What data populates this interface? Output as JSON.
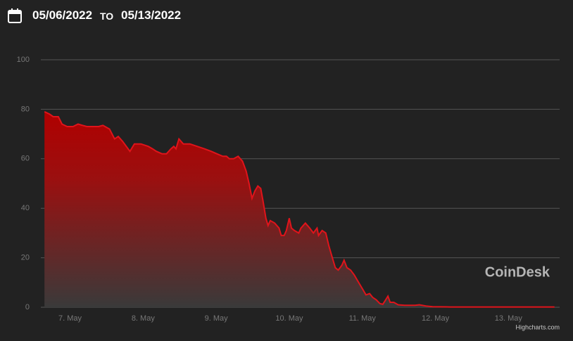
{
  "header": {
    "date_from": "05/06/2022",
    "to_label": "TO",
    "date_to": "05/13/2022"
  },
  "chart_data": {
    "type": "area",
    "watermark": "CoinDesk",
    "credits": "Highcharts.com",
    "x": [
      0.65,
      0.72,
      0.77,
      0.84,
      0.89,
      0.96,
      1.04,
      1.11,
      1.17,
      1.23,
      1.32,
      1.39,
      1.45,
      1.54,
      1.61,
      1.66,
      1.72,
      1.77,
      1.82,
      1.88,
      1.97,
      2.07,
      2.13,
      2.18,
      2.26,
      2.32,
      2.38,
      2.42,
      2.45,
      2.49,
      2.55,
      2.64,
      2.74,
      2.84,
      2.93,
      3.01,
      3.09,
      3.14,
      3.18,
      3.24,
      3.3,
      3.36,
      3.41,
      3.45,
      3.49,
      3.53,
      3.57,
      3.61,
      3.64,
      3.68,
      3.71,
      3.74,
      3.8,
      3.86,
      3.89,
      3.93,
      3.96,
      4.0,
      4.03,
      4.07,
      4.13,
      4.16,
      4.22,
      4.28,
      4.33,
      4.38,
      4.4,
      4.45,
      4.5,
      4.54,
      4.58,
      4.63,
      4.67,
      4.72,
      4.75,
      4.79,
      4.84,
      4.89,
      4.95,
      5.01,
      5.05,
      5.1,
      5.14,
      5.19,
      5.24,
      5.28,
      5.32,
      5.35,
      5.38,
      5.43,
      5.49,
      5.58,
      5.72,
      5.78,
      5.87,
      5.96,
      6.2,
      6.78,
      7.63
    ],
    "series": [
      {
        "color": "#e0141b",
        "values": [
          79,
          78,
          77,
          77,
          74,
          73,
          73,
          74,
          73.5,
          73,
          73,
          73,
          73.5,
          72,
          68,
          69,
          67,
          65,
          63,
          66,
          66,
          65,
          64,
          63,
          62,
          62,
          64,
          65,
          64,
          68,
          66,
          66,
          65,
          64,
          63,
          62,
          61,
          61,
          60,
          60,
          61,
          59,
          55,
          50,
          44,
          47,
          49,
          48,
          43,
          36,
          33,
          35,
          34,
          32,
          29,
          29,
          31,
          36,
          32,
          31,
          30,
          32,
          34,
          32,
          30,
          32,
          29,
          31,
          30,
          25,
          21,
          16,
          15,
          17,
          19,
          16,
          15,
          13,
          10,
          7,
          5,
          5.5,
          4,
          3,
          1.5,
          1.2,
          3,
          4.5,
          2,
          2,
          1,
          0.8,
          0.8,
          1,
          0.5,
          0.2,
          0.1,
          0.1,
          0.1
        ]
      }
    ],
    "xlim": [
      0.6,
      7.7
    ],
    "xticks": [
      {
        "value": 1,
        "label": "7. May"
      },
      {
        "value": 2,
        "label": "8. May"
      },
      {
        "value": 3,
        "label": "9. May"
      },
      {
        "value": 4,
        "label": "10. May"
      },
      {
        "value": 5,
        "label": "11. May"
      },
      {
        "value": 6,
        "label": "12. May"
      },
      {
        "value": 7,
        "label": "13. May"
      }
    ],
    "ylim": [
      0,
      100
    ],
    "yticks": [
      0,
      20,
      40,
      60,
      80,
      100
    ],
    "grid": true
  }
}
